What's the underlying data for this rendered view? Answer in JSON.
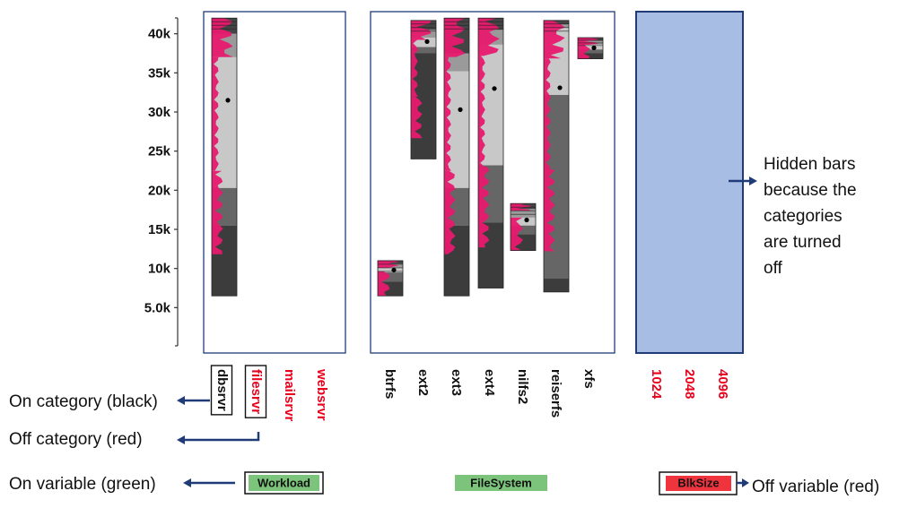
{
  "chart_data": {
    "type": "bar",
    "y_ticks": [
      "5.0k",
      "10k",
      "15k",
      "20k",
      "25k",
      "30k",
      "35k",
      "40k"
    ],
    "y_tick_values": [
      5000,
      10000,
      15000,
      20000,
      25000,
      30000,
      35000,
      40000
    ],
    "ylim": [
      0,
      42000
    ],
    "panels": [
      {
        "variable": "Workload",
        "variable_state": "on",
        "categories": [
          {
            "name": "dbsrvr",
            "state": "on",
            "boxed": true,
            "min": 6500,
            "max": 42000,
            "q1": 15500,
            "q2": 20300,
            "q3": 37000,
            "q4": 40000,
            "mean": 31500
          },
          {
            "name": "filesrvr",
            "state": "off",
            "boxed": true
          },
          {
            "name": "mailsrvr",
            "state": "off"
          },
          {
            "name": "websrvr",
            "state": "off"
          }
        ]
      },
      {
        "variable": "FileSystem",
        "variable_state": "on",
        "categories": [
          {
            "name": "btrfs",
            "state": "on",
            "min": 6500,
            "max": 11000,
            "q1": 8300,
            "q2": 9500,
            "q3": 10100,
            "q4": 10600,
            "mean": 9800
          },
          {
            "name": "ext2",
            "state": "on",
            "min": 24000,
            "max": 41700,
            "q1": 37500,
            "q2": 38300,
            "q3": 39500,
            "q4": 40500,
            "mean": 39000
          },
          {
            "name": "ext3",
            "state": "on",
            "min": 6500,
            "max": 42000,
            "q1": 15500,
            "q2": 20300,
            "q3": 35200,
            "q4": 37500,
            "mean": 30300
          },
          {
            "name": "ext4",
            "state": "on",
            "min": 7500,
            "max": 42000,
            "q1": 15900,
            "q2": 23200,
            "q3": 38600,
            "q4": 40500,
            "mean": 33000
          },
          {
            "name": "nilfs2",
            "state": "on",
            "min": 12300,
            "max": 18300,
            "q1": 14400,
            "q2": 15500,
            "q3": 16500,
            "q4": 17600,
            "mean": 16200
          },
          {
            "name": "reiserfs",
            "state": "on",
            "min": 7000,
            "max": 41700,
            "q1": 8700,
            "q2": 32200,
            "q3": 40800,
            "q4": 41200,
            "mean": 33100
          },
          {
            "name": "xfs",
            "state": "on",
            "min": 36800,
            "max": 39500,
            "q1": 37500,
            "q2": 38000,
            "q3": 38600,
            "q4": 39100,
            "mean": 38200
          }
        ]
      },
      {
        "variable": "BlkSize",
        "variable_state": "off",
        "categories": [
          {
            "name": "1024",
            "state": "off"
          },
          {
            "name": "2048",
            "state": "off"
          },
          {
            "name": "4096",
            "state": "off"
          }
        ]
      }
    ],
    "colors": {
      "on_category": "#111111",
      "off_category": "#e8001c",
      "on_variable": "#7cc47c",
      "off_variable": "#f0343e",
      "density": "#e8196e",
      "hidden_panel": "#a8bde4"
    }
  },
  "annotations": {
    "hidden_bars": [
      "Hidden bars",
      "because the",
      "categories",
      "are turned",
      "off"
    ],
    "on_category": "On category (black)",
    "off_category": "Off category (red)",
    "on_variable": "On variable (green)",
    "off_variable": "Off variable (red)"
  }
}
